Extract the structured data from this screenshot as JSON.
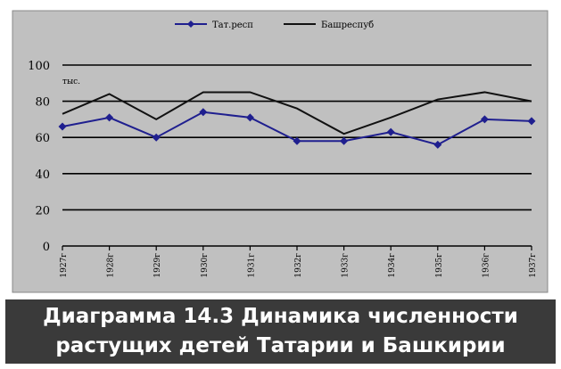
{
  "chart_data": {
    "type": "line",
    "x": [
      "1927г",
      "1928г",
      "1929г",
      "1930г",
      "1931г",
      "1932г",
      "1933г",
      "1934г",
      "1935г",
      "1936г",
      "1937г"
    ],
    "series": [
      {
        "name": "Тат.респ",
        "values": [
          66,
          71,
          60,
          74,
          71,
          58,
          58,
          63,
          56,
          70,
          69
        ],
        "color": "#1f1f8f",
        "marker": "diamond"
      },
      {
        "name": "Башреспуб",
        "values": [
          73,
          84,
          70,
          85,
          85,
          76,
          62,
          71,
          81,
          85,
          80
        ],
        "color": "#111111",
        "marker": "none"
      }
    ],
    "ylabel": "тыс.",
    "ylim": [
      0,
      100
    ],
    "yticks": [
      0,
      20,
      40,
      60,
      80,
      100
    ],
    "grid": true,
    "legend": "top"
  },
  "caption": {
    "line1": "Диаграмма 14.3 Динамика численности",
    "line2": "растущих детей Татарии и Башкирии"
  },
  "colors": {
    "plot_background": "#c0c0c0",
    "caption_background": "#3a3a3a"
  }
}
